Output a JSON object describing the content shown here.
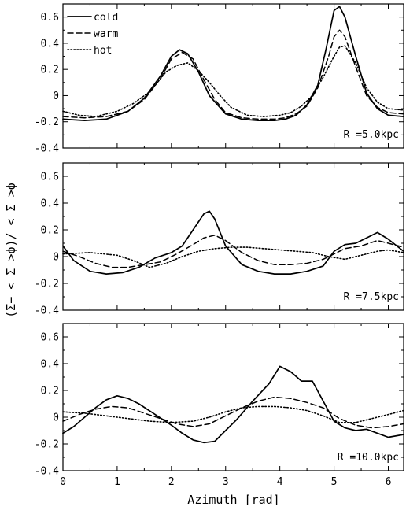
{
  "figure": {
    "xlabel": "Azimuth [rad]",
    "ylabel": "(Σ− < Σ >ϕ)/ < Σ >ϕ"
  },
  "series_styles": [
    {
      "name": "cold",
      "dash": "solid",
      "width": 1.7
    },
    {
      "name": "warm",
      "dash": "dashed",
      "width": 1.5
    },
    {
      "name": "hot",
      "dash": "dotted",
      "width": 1.6
    }
  ],
  "chart_data": [
    {
      "type": "line",
      "annotation": "R =5.0kpc",
      "legend": {
        "position": "top-left",
        "entries": [
          "cold",
          "warm",
          "hot"
        ]
      },
      "xlim": [
        0,
        6.283
      ],
      "ylim": [
        -0.4,
        0.7
      ],
      "xticks": [
        0,
        1,
        2,
        3,
        4,
        5,
        6
      ],
      "yticks": [
        -0.4,
        -0.2,
        0,
        0.2,
        0.4,
        0.6
      ],
      "ytick_labels": [
        "-0.4",
        "-0.2",
        "0",
        "0.2",
        "0.4",
        "0.6"
      ],
      "grid": false,
      "series": [
        {
          "name": "cold",
          "x": [
            0,
            0.4,
            0.8,
            1.2,
            1.5,
            1.8,
            2.0,
            2.15,
            2.3,
            2.5,
            2.7,
            3.0,
            3.3,
            3.6,
            3.9,
            4.1,
            4.3,
            4.5,
            4.7,
            4.85,
            5.0,
            5.1,
            5.2,
            5.4,
            5.6,
            5.8,
            6.0,
            6.283
          ],
          "y": [
            -0.18,
            -0.19,
            -0.18,
            -0.12,
            -0.02,
            0.15,
            0.3,
            0.35,
            0.32,
            0.18,
            0.0,
            -0.14,
            -0.18,
            -0.19,
            -0.19,
            -0.18,
            -0.15,
            -0.07,
            0.08,
            0.35,
            0.65,
            0.68,
            0.6,
            0.3,
            0.02,
            -0.1,
            -0.15,
            -0.16
          ]
        },
        {
          "name": "warm",
          "x": [
            0,
            0.4,
            0.8,
            1.2,
            1.5,
            1.8,
            2.0,
            2.2,
            2.4,
            2.6,
            2.8,
            3.0,
            3.3,
            3.6,
            3.9,
            4.1,
            4.3,
            4.5,
            4.7,
            4.9,
            5.0,
            5.1,
            5.2,
            5.4,
            5.6,
            5.8,
            6.0,
            6.283
          ],
          "y": [
            -0.16,
            -0.17,
            -0.16,
            -0.12,
            -0.03,
            0.13,
            0.28,
            0.33,
            0.28,
            0.12,
            -0.03,
            -0.13,
            -0.17,
            -0.18,
            -0.18,
            -0.17,
            -0.14,
            -0.08,
            0.06,
            0.3,
            0.45,
            0.5,
            0.45,
            0.22,
            0.0,
            -0.09,
            -0.13,
            -0.14
          ]
        },
        {
          "name": "hot",
          "x": [
            0,
            0.3,
            0.6,
            1.0,
            1.3,
            1.6,
            1.9,
            2.1,
            2.3,
            2.5,
            2.7,
            2.9,
            3.1,
            3.4,
            3.7,
            4.0,
            4.2,
            4.4,
            4.6,
            4.8,
            5.0,
            5.1,
            5.2,
            5.4,
            5.6,
            5.8,
            6.0,
            6.283
          ],
          "y": [
            -0.12,
            -0.15,
            -0.16,
            -0.12,
            -0.06,
            0.03,
            0.18,
            0.23,
            0.25,
            0.19,
            0.1,
            0.0,
            -0.09,
            -0.15,
            -0.16,
            -0.15,
            -0.13,
            -0.08,
            0.0,
            0.14,
            0.3,
            0.37,
            0.38,
            0.25,
            0.06,
            -0.05,
            -0.1,
            -0.11
          ]
        }
      ]
    },
    {
      "type": "line",
      "annotation": "R =7.5kpc",
      "xlim": [
        0,
        6.283
      ],
      "ylim": [
        -0.4,
        0.7
      ],
      "xticks": [
        0,
        1,
        2,
        3,
        4,
        5,
        6
      ],
      "yticks": [
        -0.4,
        -0.2,
        0,
        0.2,
        0.4,
        0.6
      ],
      "ytick_labels": [
        "-0.4",
        "-0.2",
        "0",
        "0.2",
        "0.4",
        "0.6"
      ],
      "grid": false,
      "series": [
        {
          "name": "cold",
          "x": [
            0,
            0.2,
            0.5,
            0.8,
            1.1,
            1.4,
            1.7,
            2.0,
            2.2,
            2.4,
            2.6,
            2.7,
            2.8,
            3.0,
            3.3,
            3.6,
            3.9,
            4.2,
            4.5,
            4.8,
            5.0,
            5.2,
            5.4,
            5.6,
            5.8,
            6.0,
            6.283
          ],
          "y": [
            0.08,
            -0.03,
            -0.11,
            -0.13,
            -0.12,
            -0.08,
            -0.01,
            0.03,
            0.08,
            0.2,
            0.32,
            0.34,
            0.28,
            0.08,
            -0.06,
            -0.11,
            -0.13,
            -0.13,
            -0.11,
            -0.07,
            0.04,
            0.09,
            0.1,
            0.14,
            0.18,
            0.13,
            0.04
          ]
        },
        {
          "name": "warm",
          "x": [
            0,
            0.3,
            0.6,
            0.9,
            1.2,
            1.5,
            1.8,
            2.1,
            2.4,
            2.6,
            2.8,
            3.0,
            3.3,
            3.6,
            3.9,
            4.2,
            4.5,
            4.8,
            5.0,
            5.2,
            5.5,
            5.8,
            6.0,
            6.283
          ],
          "y": [
            0.04,
            0.0,
            -0.05,
            -0.08,
            -0.08,
            -0.06,
            -0.04,
            0.02,
            0.09,
            0.14,
            0.16,
            0.12,
            0.03,
            -0.03,
            -0.06,
            -0.06,
            -0.05,
            -0.02,
            0.02,
            0.06,
            0.08,
            0.12,
            0.1,
            0.07
          ]
        },
        {
          "name": "hot",
          "x": [
            0,
            0.5,
            1.0,
            1.3,
            1.6,
            1.9,
            2.2,
            2.5,
            2.8,
            3.1,
            3.4,
            3.7,
            4.0,
            4.3,
            4.6,
            4.9,
            5.2,
            5.5,
            5.8,
            6.0,
            6.283
          ],
          "y": [
            0.02,
            0.03,
            0.01,
            -0.03,
            -0.08,
            -0.05,
            0.0,
            0.04,
            0.06,
            0.07,
            0.07,
            0.06,
            0.05,
            0.04,
            0.03,
            0.0,
            -0.02,
            0.01,
            0.04,
            0.05,
            0.03
          ]
        }
      ]
    },
    {
      "type": "line",
      "annotation": "R =10.0kpc",
      "xlim": [
        0,
        6.283
      ],
      "ylim": [
        -0.4,
        0.7
      ],
      "xticks": [
        0,
        1,
        2,
        3,
        4,
        5,
        6
      ],
      "xtick_labels": [
        "0",
        "1",
        "2",
        "3",
        "4",
        "5",
        "6"
      ],
      "yticks": [
        -0.4,
        -0.2,
        0,
        0.2,
        0.4,
        0.6
      ],
      "ytick_labels": [
        "-0.4",
        "-0.2",
        "0",
        "0.2",
        "0.4",
        "0.6"
      ],
      "grid": false,
      "series": [
        {
          "name": "cold",
          "x": [
            0,
            0.2,
            0.4,
            0.6,
            0.8,
            1.0,
            1.2,
            1.4,
            1.7,
            2.0,
            2.2,
            2.4,
            2.6,
            2.8,
            3.0,
            3.2,
            3.5,
            3.8,
            4.0,
            4.2,
            4.4,
            4.6,
            4.8,
            5.0,
            5.2,
            5.4,
            5.6,
            5.8,
            6.0,
            6.283
          ],
          "y": [
            -0.12,
            -0.07,
            0.0,
            0.07,
            0.13,
            0.16,
            0.14,
            0.1,
            0.02,
            -0.06,
            -0.12,
            -0.17,
            -0.19,
            -0.18,
            -0.1,
            -0.02,
            0.12,
            0.25,
            0.38,
            0.34,
            0.27,
            0.27,
            0.12,
            -0.03,
            -0.08,
            -0.1,
            -0.09,
            -0.12,
            -0.15,
            -0.13
          ]
        },
        {
          "name": "warm",
          "x": [
            0,
            0.3,
            0.6,
            0.9,
            1.2,
            1.5,
            1.8,
            2.1,
            2.4,
            2.7,
            3.0,
            3.3,
            3.6,
            3.9,
            4.2,
            4.5,
            4.8,
            5.1,
            5.4,
            5.7,
            6.0,
            6.283
          ],
          "y": [
            -0.03,
            0.02,
            0.06,
            0.08,
            0.07,
            0.03,
            -0.01,
            -0.05,
            -0.07,
            -0.05,
            0.01,
            0.07,
            0.12,
            0.15,
            0.14,
            0.11,
            0.07,
            -0.01,
            -0.06,
            -0.08,
            -0.07,
            -0.05
          ]
        },
        {
          "name": "hot",
          "x": [
            0,
            0.4,
            0.8,
            1.2,
            1.6,
            2.0,
            2.4,
            2.7,
            3.0,
            3.3,
            3.6,
            3.9,
            4.2,
            4.5,
            4.8,
            5.1,
            5.4,
            5.7,
            6.0,
            6.283
          ],
          "y": [
            0.04,
            0.03,
            0.01,
            -0.01,
            -0.03,
            -0.04,
            -0.03,
            0.0,
            0.04,
            0.07,
            0.08,
            0.08,
            0.07,
            0.05,
            0.01,
            -0.04,
            -0.04,
            -0.01,
            0.02,
            0.05
          ]
        }
      ]
    }
  ]
}
